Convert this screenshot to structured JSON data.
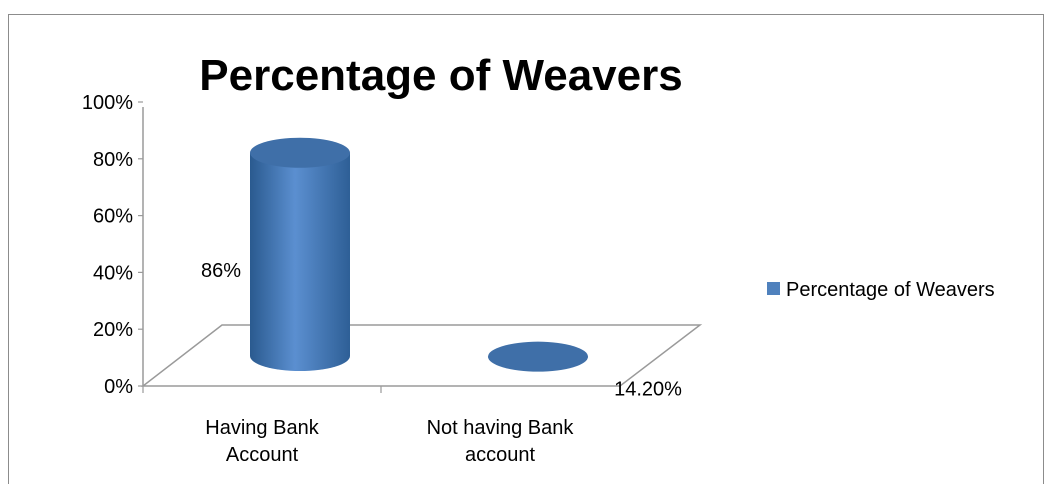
{
  "chart_data": {
    "type": "bar",
    "title": "Percentage of Weavers",
    "categories": [
      [
        "Having Bank",
        "Account"
      ],
      [
        "Not having Bank",
        "account"
      ]
    ],
    "series": [
      {
        "name": "Percentage of Weavers",
        "values": [
          86,
          14.2
        ],
        "labels": [
          "86%",
          "14.20%"
        ],
        "color": "#4f81bd"
      }
    ],
    "y_ticks": [
      "0%",
      "20%",
      "40%",
      "60%",
      "80%",
      "100%"
    ],
    "ylim": [
      0,
      100
    ],
    "grid": false,
    "legend": "right"
  }
}
